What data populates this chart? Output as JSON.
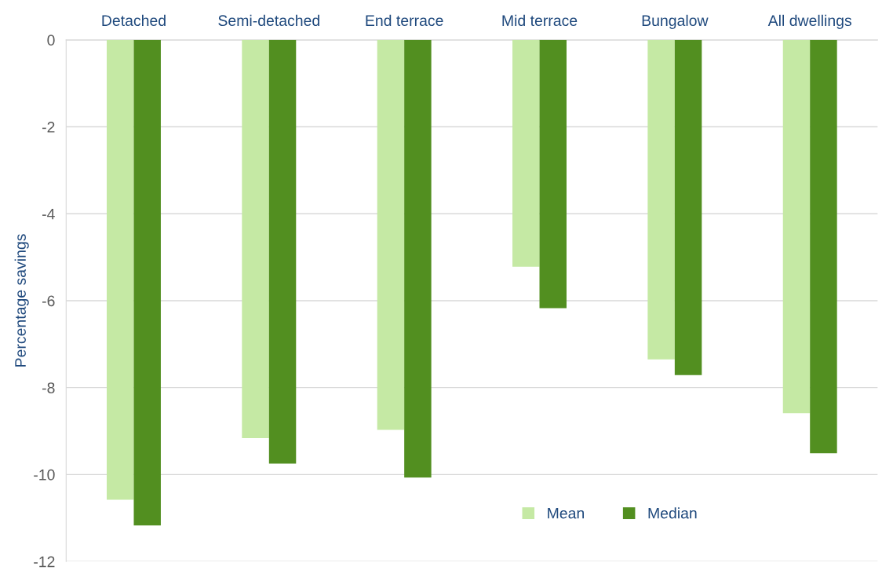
{
  "chart_data": {
    "type": "bar",
    "ylabel": "Percentage savings",
    "categories": [
      "Detached",
      "Semi-detached",
      "End terrace",
      "Mid terrace",
      "Bungalow",
      "All dwellings"
    ],
    "series": [
      {
        "name": "Mean",
        "color": "#c5e9a4",
        "values": [
          -10.58,
          -9.16,
          -8.97,
          -5.22,
          -7.35,
          -8.59
        ]
      },
      {
        "name": "Median",
        "color": "#528f20",
        "values": [
          -11.17,
          -9.75,
          -10.07,
          -6.17,
          -7.71,
          -9.51
        ]
      }
    ],
    "ylim": [
      -12,
      0
    ],
    "yticks": [
      {
        "value": 0,
        "label": "0"
      },
      {
        "value": -2,
        "label": "-2"
      },
      {
        "value": -4,
        "label": "-4"
      },
      {
        "value": -6,
        "label": "-6"
      },
      {
        "value": -8,
        "label": "-8"
      },
      {
        "value": -10,
        "label": "-10"
      },
      {
        "value": -12,
        "label": "-12"
      }
    ],
    "grid": "y",
    "legend": "bottom"
  }
}
